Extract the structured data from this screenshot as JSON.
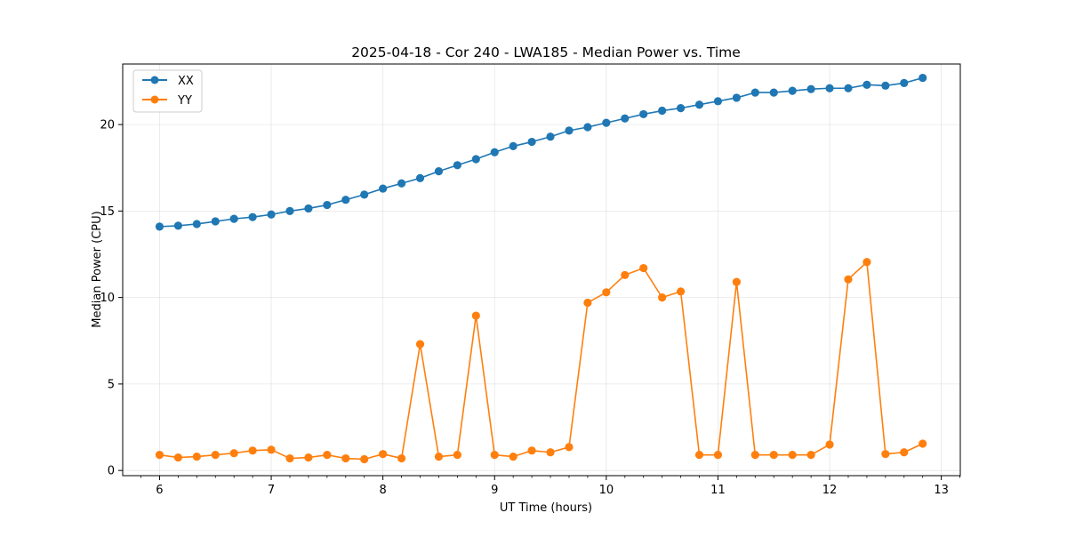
{
  "chart_data": {
    "type": "line",
    "title": "2025-04-18 - Cor 240 - LWA185 - Median Power vs. Time",
    "xlabel": "UT Time (hours)",
    "ylabel": "Median Power (CPU)",
    "xlim": [
      5.67,
      13.17
    ],
    "ylim": [
      -0.3,
      23.5
    ],
    "xticks": [
      6,
      7,
      8,
      9,
      10,
      11,
      12,
      13
    ],
    "yticks": [
      0,
      5,
      10,
      15,
      20
    ],
    "grid": true,
    "legend_position": "top-left",
    "x": [
      6.0,
      6.1667,
      6.3333,
      6.5,
      6.6667,
      6.8333,
      7.0,
      7.1667,
      7.3333,
      7.5,
      7.6667,
      7.8333,
      8.0,
      8.1667,
      8.3333,
      8.5,
      8.6667,
      8.8333,
      9.0,
      9.1667,
      9.3333,
      9.5,
      9.6667,
      9.8333,
      10.0,
      10.1667,
      10.3333,
      10.5,
      10.6667,
      10.8333,
      11.0,
      11.1667,
      11.3333,
      11.5,
      11.6667,
      11.8333,
      12.0,
      12.1667,
      12.3333,
      12.5,
      12.6667,
      12.8333
    ],
    "series": [
      {
        "name": "XX",
        "color": "#1f77b4",
        "values": [
          14.1,
          14.15,
          14.25,
          14.4,
          14.55,
          14.65,
          14.8,
          15.0,
          15.15,
          15.35,
          15.65,
          15.95,
          16.3,
          16.6,
          16.9,
          17.3,
          17.65,
          18.0,
          18.4,
          18.75,
          19.0,
          19.3,
          19.65,
          19.85,
          20.1,
          20.35,
          20.6,
          20.8,
          20.95,
          21.15,
          21.35,
          21.55,
          21.85,
          21.85,
          21.95,
          22.05,
          22.1,
          22.1,
          22.3,
          22.25,
          22.4,
          22.7
        ]
      },
      {
        "name": "YY",
        "color": "#ff7f0e",
        "values": [
          0.9,
          0.75,
          0.8,
          0.9,
          1.0,
          1.15,
          1.2,
          0.7,
          0.75,
          0.9,
          0.7,
          0.65,
          0.95,
          0.7,
          7.3,
          0.8,
          0.9,
          8.95,
          0.9,
          0.8,
          1.15,
          1.05,
          1.35,
          9.7,
          10.3,
          11.3,
          11.7,
          10.0,
          10.35,
          0.9,
          0.9,
          10.9,
          0.9,
          0.9,
          0.9,
          0.9,
          1.5,
          11.05,
          12.05,
          0.95,
          1.05,
          1.55
        ]
      }
    ]
  }
}
